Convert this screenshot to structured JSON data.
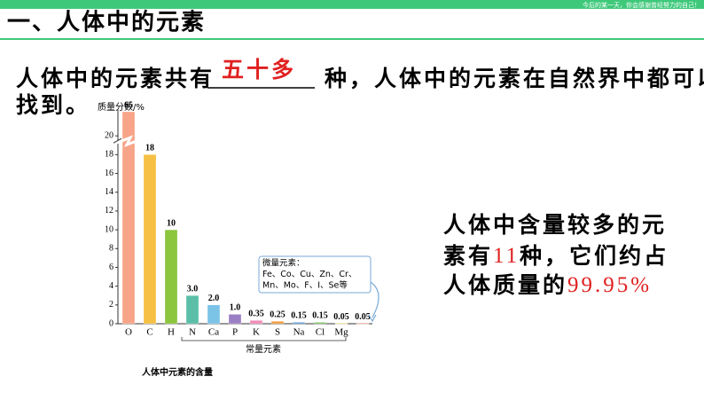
{
  "top_motto": "今后的某一天，你会感谢曾经努力的自己！",
  "heading": "一、人体中的元素",
  "intro": {
    "before": "人体中的元素共有",
    "answer": "五十多",
    "after": "种，人体中的元素在自然界中都可以",
    "line2": "找到。"
  },
  "summary": {
    "line1": "人体中含量较多的元",
    "line2a": "素有",
    "count": "11",
    "line2b": "种，它们约占",
    "line3a": "人体质量的",
    "percent": "99.95%"
  },
  "chart_data": {
    "type": "bar",
    "ylabel": "质量分数/%",
    "xlabel": "常量元素",
    "caption": "人体中元素的含量",
    "annotation": [
      "微量元素：",
      "Fe、Co、Cu、Zn、Cr、",
      "Mn、Mo、F、I、Se等"
    ],
    "categories": [
      "O",
      "C",
      "H",
      "N",
      "Ca",
      "P",
      "K",
      "S",
      "Na",
      "Cl",
      "Mg",
      null
    ],
    "values": [
      65,
      18,
      10,
      3,
      2,
      1,
      0.35,
      0.25,
      0.15,
      0.15,
      0.05,
      0.05
    ],
    "value_labels": [
      "65",
      "18",
      "10",
      "3.0",
      "2.0",
      "1.0",
      "0.35",
      "0.25",
      "0.15",
      "0.15",
      "0.05",
      "0.05"
    ],
    "colors": [
      "#f8a488",
      "#f5c043",
      "#8cc63f",
      "#5bbfa8",
      "#7cc3e8",
      "#9b7fc4",
      "#f08cb8",
      "#f39a3c",
      "#5b9bd5",
      "#7cc36a",
      "#e0c040",
      "#e06050"
    ],
    "ylim": [
      0,
      22
    ],
    "yticks": [
      0,
      2,
      4,
      6,
      8,
      10,
      12,
      14,
      16,
      18,
      20
    ],
    "axis_break": true
  }
}
